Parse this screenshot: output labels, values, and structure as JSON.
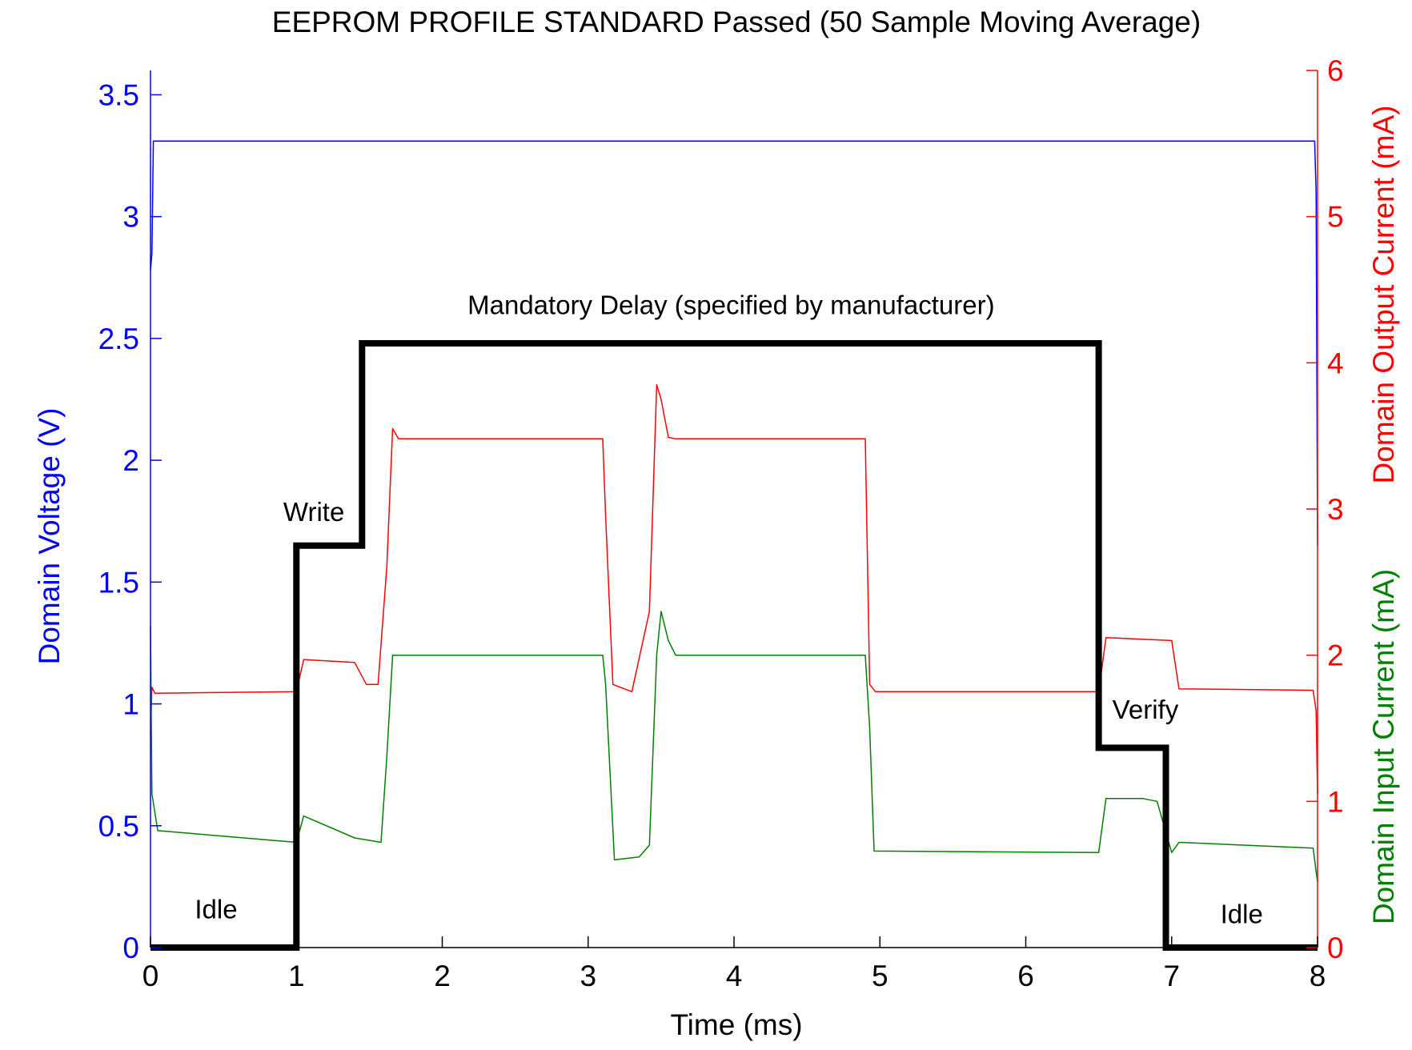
{
  "chart_data": {
    "type": "line",
    "title": "EEPROM PROFILE STANDARD Passed (50 Sample Moving Average)",
    "xlabel": "Time (ms)",
    "ylabel_left": "Domain Voltage (V)",
    "ylabel_right_top": "Domain Output Current (mA)",
    "ylabel_right_bottom": "Domain Input Current (mA)",
    "xlim": [
      0,
      8
    ],
    "ylim_left": [
      0,
      3.6
    ],
    "ylim_right": [
      0,
      6
    ],
    "x_ticks": [
      "0",
      "1",
      "2",
      "3",
      "4",
      "5",
      "6",
      "7",
      "8"
    ],
    "y_left_ticks": [
      "0",
      "0.5",
      "1",
      "1.5",
      "2",
      "2.5",
      "3",
      "3.5"
    ],
    "y_right_ticks": [
      "0",
      "1",
      "2",
      "3",
      "4",
      "5",
      "6"
    ],
    "grid": false,
    "colors": {
      "voltage": "#0000ff",
      "output_current": "#ff0000",
      "input_current": "#008000",
      "profile": "#000000",
      "text": "#000000"
    },
    "series": [
      {
        "key": "voltage",
        "axis": "left",
        "x": [
          0,
          0.01,
          0.02,
          0.03,
          7.97,
          7.98,
          7.99,
          8.0
        ],
        "y": [
          2.78,
          2.85,
          3.31,
          3.31,
          3.31,
          3.31,
          3.1,
          1.65
        ]
      },
      {
        "key": "output_current",
        "axis": "right",
        "x": [
          0,
          0.01,
          0.03,
          1.0,
          1.05,
          1.4,
          1.48,
          1.56,
          1.62,
          1.66,
          1.7,
          3.1,
          3.12,
          3.17,
          3.3,
          3.42,
          3.47,
          3.5,
          3.55,
          3.6,
          4.9,
          4.93,
          4.97,
          6.5,
          6.55,
          7.0,
          7.05,
          7.97,
          7.99,
          8.0
        ],
        "y": [
          1.45,
          1.78,
          1.74,
          1.75,
          1.97,
          1.95,
          1.8,
          1.8,
          2.6,
          3.55,
          3.48,
          3.48,
          2.95,
          1.8,
          1.75,
          2.3,
          3.85,
          3.75,
          3.49,
          3.48,
          3.48,
          1.8,
          1.75,
          1.75,
          2.12,
          2.1,
          1.77,
          1.76,
          1.62,
          1.05
        ]
      },
      {
        "key": "input_current",
        "axis": "right",
        "x": [
          0,
          0.01,
          0.05,
          1.0,
          1.05,
          1.4,
          1.58,
          1.62,
          1.66,
          3.1,
          3.12,
          3.18,
          3.35,
          3.42,
          3.47,
          3.5,
          3.55,
          3.6,
          4.9,
          4.93,
          4.96,
          6.5,
          6.55,
          6.8,
          6.9,
          7.0,
          7.05,
          7.97,
          7.99,
          8.0
        ],
        "y": [
          2.2,
          1.05,
          0.8,
          0.72,
          0.9,
          0.75,
          0.72,
          1.3,
          2.0,
          2.0,
          1.8,
          0.6,
          0.62,
          0.7,
          2.0,
          2.3,
          2.1,
          2.0,
          2.0,
          1.5,
          0.66,
          0.65,
          1.02,
          1.02,
          1.0,
          0.65,
          0.72,
          0.68,
          0.52,
          0.45
        ]
      },
      {
        "key": "profile",
        "axis": "left",
        "x": [
          0,
          1.0,
          1.0,
          1.45,
          1.45,
          6.5,
          6.5,
          6.96,
          6.96,
          8.0
        ],
        "y": [
          0,
          0,
          1.65,
          1.65,
          2.48,
          2.48,
          0.82,
          0.82,
          0,
          0
        ]
      }
    ],
    "annotations": [
      {
        "text": "Idle",
        "x": 0.45,
        "y": 0.12
      },
      {
        "text": "Write",
        "x": 1.12,
        "y": 1.75
      },
      {
        "text": "Mandatory Delay (specified by manufacturer)",
        "x": 3.98,
        "y": 2.6
      },
      {
        "text": "Verify",
        "x": 6.82,
        "y": 0.94
      },
      {
        "text": "Idle",
        "x": 7.48,
        "y": 0.1
      }
    ]
  }
}
